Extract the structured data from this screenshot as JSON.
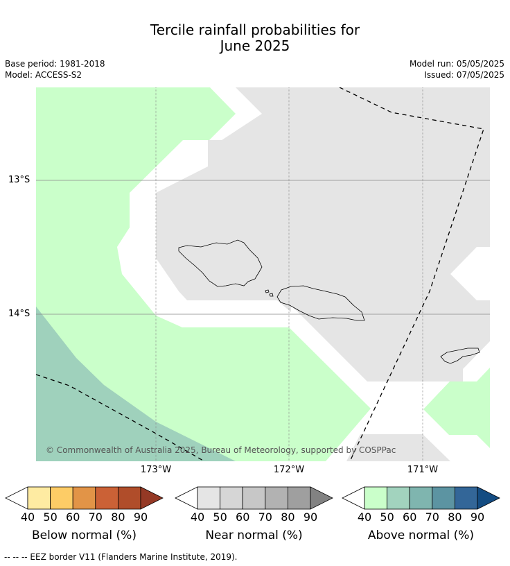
{
  "title_line1": "Tercile rainfall probabilities for",
  "title_line2": "June 2025",
  "base_period": "Base period: 1981-2018",
  "model": "Model: ACCESS-S2",
  "model_run": "Model run: 05/05/2025",
  "issued": "Issued: 07/05/2025",
  "lat_labels": [
    "13°S",
    "14°S"
  ],
  "lon_labels": [
    "173°W",
    "172°W",
    "171°W"
  ],
  "copyright": "© Commonwealth of Australia 2025, Bureau of Meteorology, supported by COSPPac",
  "colorbars": [
    {
      "label": "Below normal (%)",
      "ticks": [
        "40",
        "50",
        "60",
        "70",
        "80",
        "90"
      ],
      "colors": [
        "#ffffff",
        "#feeba2",
        "#fdcc66",
        "#e29447",
        "#cb6136",
        "#b04d2a",
        "#953925"
      ]
    },
    {
      "label": "Near normal (%)",
      "ticks": [
        "40",
        "50",
        "60",
        "70",
        "80",
        "90"
      ],
      "colors": [
        "#ffffff",
        "#e5e5e5",
        "#d6d6d6",
        "#c7c7c7",
        "#b2b2b2",
        "#9f9f9f",
        "#828282"
      ]
    },
    {
      "label": "Above normal (%)",
      "ticks": [
        "40",
        "50",
        "60",
        "70",
        "80",
        "90"
      ],
      "colors": [
        "#ffffff",
        "#caffca",
        "#a2d3be",
        "#7fb5af",
        "#5c94a2",
        "#336698",
        "#144c82"
      ]
    }
  ],
  "region_colors": {
    "above_40": "#caffca",
    "above_50": "#9fd1bc",
    "near_40": "#e5e5e5",
    "land_outline": "#000000"
  },
  "footnote": "--  --  -- EEZ border V11 (Flanders Marine Institute, 2019)."
}
